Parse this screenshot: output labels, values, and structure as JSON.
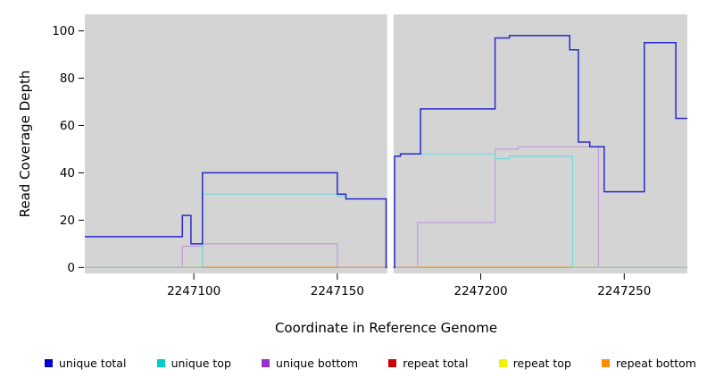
{
  "chart_data": {
    "type": "line",
    "step": "after",
    "title": "",
    "xlabel": "Coordinate in Reference Genome",
    "ylabel": "Read Coverage Depth",
    "xlim": [
      2247062,
      2247272
    ],
    "ylim": [
      0,
      100
    ],
    "xticks": [
      2247100,
      2247150,
      2247200,
      2247250
    ],
    "yticks": [
      0,
      20,
      40,
      60,
      80,
      100
    ],
    "plot_bg": "#d4d4d4",
    "grid": false,
    "gap": {
      "x_start": 2247167.4,
      "x_end": 2247169.6
    },
    "series": [
      {
        "name": "unique total",
        "color": "#2929cc",
        "points": [
          [
            2247062,
            13
          ],
          [
            2247096,
            22
          ],
          [
            2247099,
            10
          ],
          [
            2247103,
            40
          ],
          [
            2247150,
            31
          ],
          [
            2247153,
            29
          ],
          [
            2247167,
            0
          ],
          [
            2247170,
            47
          ],
          [
            2247172,
            48
          ],
          [
            2247179,
            67
          ],
          [
            2247205,
            97
          ],
          [
            2247210,
            98
          ],
          [
            2247231,
            92
          ],
          [
            2247234,
            53
          ],
          [
            2247238,
            51
          ],
          [
            2247243,
            32
          ],
          [
            2247257,
            95
          ],
          [
            2247268,
            63
          ]
        ]
      },
      {
        "name": "unique top",
        "color": "#6fd9d9",
        "points": [
          [
            2247062,
            0
          ],
          [
            2247103,
            31
          ],
          [
            2247150,
            30
          ],
          [
            2247153,
            29
          ],
          [
            2247167,
            0
          ],
          [
            2247170,
            47
          ],
          [
            2247172,
            48
          ],
          [
            2247205,
            46
          ],
          [
            2247210,
            47
          ],
          [
            2247232,
            0
          ]
        ]
      },
      {
        "name": "unique bottom",
        "color": "#c49ade",
        "points": [
          [
            2247062,
            0
          ],
          [
            2247096,
            9
          ],
          [
            2247103,
            10
          ],
          [
            2247150,
            0
          ],
          [
            2247178,
            19
          ],
          [
            2247205,
            50
          ],
          [
            2247213,
            51
          ],
          [
            2247241,
            0
          ]
        ]
      },
      {
        "name": "repeat total",
        "color": "#b22222",
        "points": [
          [
            2247062,
            0
          ]
        ]
      },
      {
        "name": "repeat top",
        "color": "#e6e600",
        "points": [
          [
            2247062,
            0
          ]
        ]
      },
      {
        "name": "repeat bottom",
        "color": "#ff9a00",
        "points": [
          [
            2247062,
            0
          ]
        ]
      }
    ],
    "legend_position": "bottom",
    "legend": [
      {
        "label": "unique total",
        "color": "#0000cc"
      },
      {
        "label": "unique top",
        "color": "#00cccc"
      },
      {
        "label": "unique bottom",
        "color": "#9932cc"
      },
      {
        "label": "repeat total",
        "color": "#cc0000"
      },
      {
        "label": "repeat top",
        "color": "#f2f200"
      },
      {
        "label": "repeat bottom",
        "color": "#ff8c00"
      }
    ]
  }
}
